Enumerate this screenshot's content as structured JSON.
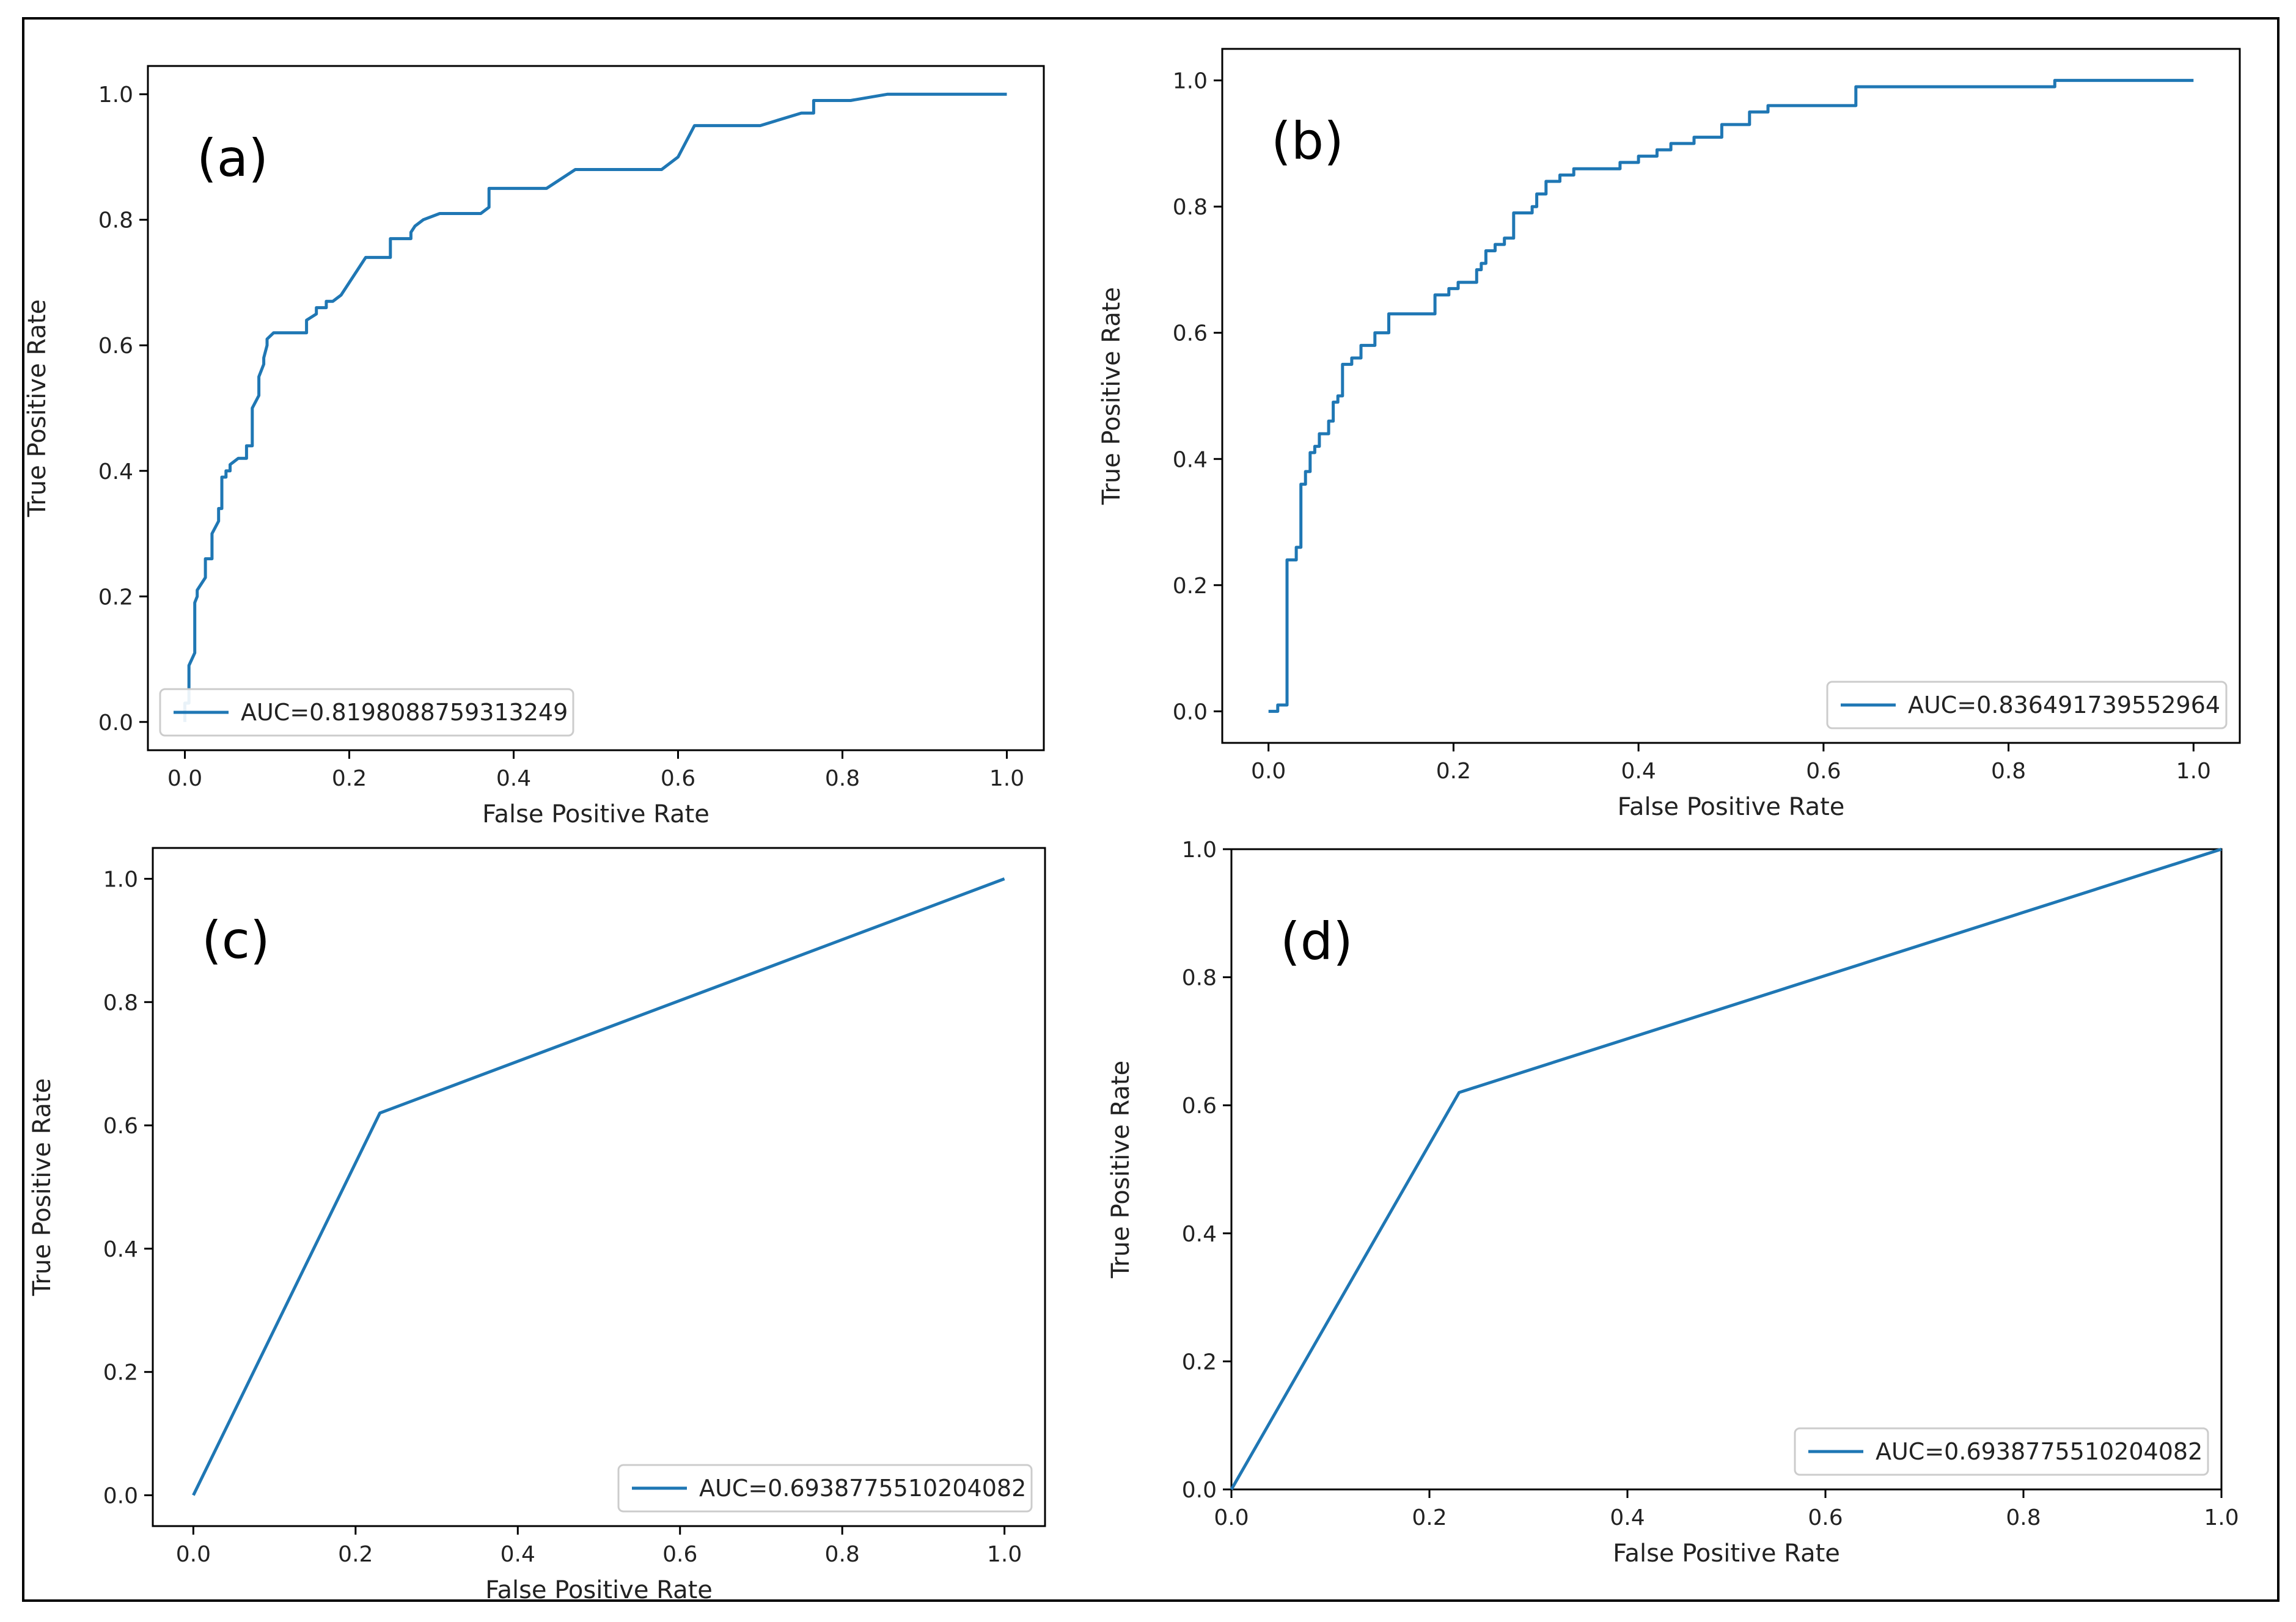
{
  "chart_data": [
    {
      "type": "line",
      "panel_label": "(a)",
      "xlabel": "False Positive Rate",
      "ylabel": "True Positive Rate",
      "xlim": [
        0,
        1
      ],
      "ylim": [
        0,
        1
      ],
      "xticks": [
        "0.0",
        "0.2",
        "0.4",
        "0.6",
        "0.8",
        "1.0"
      ],
      "yticks": [
        "0.0",
        "0.2",
        "0.4",
        "0.6",
        "0.8",
        "1.0"
      ],
      "legend_position": "lower-left",
      "series": [
        {
          "name": "AUC=0.8198088759313249",
          "color": "#1f77b4",
          "x": [
            0.0,
            0.0,
            0.005,
            0.005,
            0.012,
            0.012,
            0.015,
            0.015,
            0.025,
            0.025,
            0.033,
            0.033,
            0.041,
            0.041,
            0.045,
            0.045,
            0.05,
            0.05,
            0.055,
            0.055,
            0.065,
            0.075,
            0.075,
            0.082,
            0.082,
            0.09,
            0.09,
            0.096,
            0.096,
            0.1,
            0.1,
            0.108,
            0.115,
            0.123,
            0.13,
            0.148,
            0.148,
            0.16,
            0.16,
            0.172,
            0.172,
            0.18,
            0.19,
            0.2,
            0.21,
            0.22,
            0.235,
            0.25,
            0.25,
            0.275,
            0.275,
            0.28,
            0.29,
            0.31,
            0.33,
            0.36,
            0.37,
            0.37,
            0.42,
            0.44,
            0.475,
            0.58,
            0.6,
            0.62,
            0.7,
            0.75,
            0.765,
            0.765,
            0.795,
            0.81,
            0.855,
            0.93,
            1.0
          ],
          "y": [
            0.0,
            0.03,
            0.03,
            0.09,
            0.11,
            0.19,
            0.2,
            0.21,
            0.23,
            0.26,
            0.26,
            0.3,
            0.32,
            0.34,
            0.34,
            0.39,
            0.39,
            0.4,
            0.4,
            0.41,
            0.42,
            0.42,
            0.44,
            0.44,
            0.5,
            0.52,
            0.55,
            0.57,
            0.58,
            0.6,
            0.61,
            0.62,
            0.62,
            0.62,
            0.62,
            0.62,
            0.64,
            0.65,
            0.66,
            0.66,
            0.67,
            0.67,
            0.68,
            0.7,
            0.72,
            0.74,
            0.74,
            0.74,
            0.77,
            0.77,
            0.78,
            0.79,
            0.8,
            0.81,
            0.81,
            0.81,
            0.82,
            0.85,
            0.85,
            0.85,
            0.88,
            0.88,
            0.9,
            0.95,
            0.95,
            0.97,
            0.97,
            0.99,
            0.99,
            0.99,
            1.0,
            1.0,
            1.0
          ]
        }
      ]
    },
    {
      "type": "line",
      "panel_label": "(b)",
      "xlabel": "False Positive Rate",
      "ylabel": "True Positive Rate",
      "xlim": [
        0,
        1
      ],
      "ylim": [
        0,
        1
      ],
      "xticks": [
        "0.0",
        "0.2",
        "0.4",
        "0.6",
        "0.8",
        "1.0"
      ],
      "yticks": [
        "0.0",
        "0.2",
        "0.4",
        "0.6",
        "0.8",
        "1.0"
      ],
      "legend_position": "lower-right",
      "series": [
        {
          "name": "AUC=0.836491739552964",
          "color": "#1f77b4",
          "x": [
            0.0,
            0.01,
            0.01,
            0.02,
            0.02,
            0.03,
            0.03,
            0.035,
            0.035,
            0.04,
            0.04,
            0.045,
            0.045,
            0.05,
            0.05,
            0.055,
            0.055,
            0.065,
            0.065,
            0.07,
            0.07,
            0.075,
            0.075,
            0.08,
            0.08,
            0.09,
            0.09,
            0.1,
            0.1,
            0.115,
            0.115,
            0.13,
            0.13,
            0.18,
            0.18,
            0.195,
            0.195,
            0.205,
            0.205,
            0.225,
            0.225,
            0.23,
            0.23,
            0.235,
            0.235,
            0.245,
            0.245,
            0.255,
            0.255,
            0.265,
            0.265,
            0.285,
            0.285,
            0.29,
            0.29,
            0.3,
            0.3,
            0.315,
            0.315,
            0.33,
            0.33,
            0.38,
            0.38,
            0.4,
            0.4,
            0.42,
            0.42,
            0.435,
            0.435,
            0.46,
            0.46,
            0.49,
            0.49,
            0.52,
            0.52,
            0.54,
            0.54,
            0.6,
            0.6,
            0.635,
            0.635,
            0.85,
            0.85,
            0.88,
            0.88,
            1.0
          ],
          "y": [
            0.0,
            0.0,
            0.01,
            0.01,
            0.24,
            0.24,
            0.26,
            0.26,
            0.36,
            0.36,
            0.38,
            0.38,
            0.41,
            0.41,
            0.42,
            0.42,
            0.44,
            0.44,
            0.46,
            0.46,
            0.49,
            0.49,
            0.5,
            0.5,
            0.55,
            0.55,
            0.56,
            0.56,
            0.58,
            0.58,
            0.6,
            0.6,
            0.63,
            0.63,
            0.66,
            0.66,
            0.67,
            0.67,
            0.68,
            0.68,
            0.7,
            0.7,
            0.71,
            0.71,
            0.73,
            0.73,
            0.74,
            0.74,
            0.75,
            0.75,
            0.79,
            0.79,
            0.8,
            0.8,
            0.82,
            0.82,
            0.84,
            0.84,
            0.85,
            0.85,
            0.86,
            0.86,
            0.87,
            0.87,
            0.88,
            0.88,
            0.89,
            0.89,
            0.9,
            0.9,
            0.91,
            0.91,
            0.93,
            0.93,
            0.95,
            0.95,
            0.96,
            0.96,
            0.96,
            0.96,
            0.99,
            0.99,
            1.0,
            1.0,
            1.0,
            1.0
          ]
        }
      ]
    },
    {
      "type": "line",
      "panel_label": "(c)",
      "xlabel": "False Positive Rate",
      "ylabel": "True Positive Rate",
      "xlim": [
        0,
        1
      ],
      "ylim": [
        0,
        1
      ],
      "xticks": [
        "0.0",
        "0.2",
        "0.4",
        "0.6",
        "0.8",
        "1.0"
      ],
      "yticks": [
        "0.0",
        "0.2",
        "0.4",
        "0.6",
        "0.8",
        "1.0"
      ],
      "legend_position": "lower-right",
      "series": [
        {
          "name": "AUC=0.6938775510204082",
          "color": "#1f77b4",
          "x": [
            0.0,
            0.23,
            1.0
          ],
          "y": [
            0.0,
            0.62,
            1.0
          ]
        }
      ]
    },
    {
      "type": "line",
      "panel_label": "(d)",
      "xlabel": "False Positive Rate",
      "ylabel": "True Positive Rate",
      "xlim": [
        0,
        1
      ],
      "ylim": [
        0,
        1
      ],
      "xticks": [
        "0.0",
        "0.2",
        "0.4",
        "0.6",
        "0.8",
        "1.0"
      ],
      "yticks": [
        "0.0",
        "0.2",
        "0.4",
        "0.6",
        "0.8",
        "1.0"
      ],
      "legend_position": "lower-right",
      "series": [
        {
          "name": "AUC=0.6938775510204082",
          "color": "#1f77b4",
          "x": [
            0.0,
            0.23,
            1.0
          ],
          "y": [
            0.0,
            0.62,
            1.0
          ]
        }
      ]
    }
  ]
}
